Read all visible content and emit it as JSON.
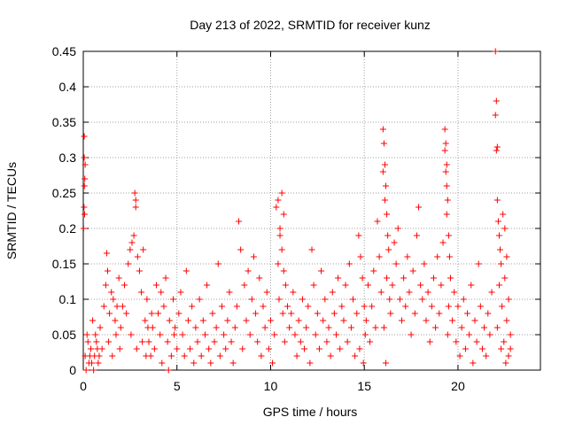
{
  "chart_data": {
    "type": "scatter",
    "title": "Day 213 of 2022, SRMTID for receiver kunz",
    "xlabel": "GPS time / hours",
    "ylabel": "SRMTID / TECUs",
    "xlim": [
      0,
      24.4
    ],
    "ylim": [
      0,
      0.45
    ],
    "x_ticks": [
      0,
      5,
      10,
      15,
      20
    ],
    "x_tick_labels": [
      "0",
      "5",
      "10",
      "15",
      "20"
    ],
    "y_ticks": [
      0,
      0.05,
      0.1,
      0.15,
      0.2,
      0.25,
      0.3,
      0.35,
      0.4,
      0.45
    ],
    "y_tick_labels": [
      "0",
      "0.05",
      "0.1",
      "0.15",
      "0.2",
      "0.25",
      "0.3",
      "0.35",
      "0.4",
      "0.45"
    ],
    "grid": true,
    "marker": "plus",
    "marker_color": "#ff0000",
    "series": [
      {
        "name": "SRMTID",
        "color": "#ff0000",
        "points": [
          [
            0.05,
            0.33
          ],
          [
            0.05,
            0.3
          ],
          [
            0.08,
            0.27
          ],
          [
            0.06,
            0.26
          ],
          [
            0.04,
            0.23
          ],
          [
            0.07,
            0.22
          ],
          [
            0.1,
            0.29
          ],
          [
            0.02,
            0.2
          ],
          [
            0.1,
            0.02
          ],
          [
            0.2,
            0.05
          ],
          [
            0.3,
            0.01
          ],
          [
            0.4,
            0.03
          ],
          [
            0.5,
            0.07
          ],
          [
            0.6,
            0.02
          ],
          [
            0.7,
            0.04
          ],
          [
            0.8,
            0.01
          ],
          [
            0.9,
            0.06
          ],
          [
            1.0,
            0.03
          ],
          [
            0.15,
            0.0
          ],
          [
            0.35,
            0.02
          ],
          [
            0.55,
            0.0
          ],
          [
            0.75,
            0.03
          ],
          [
            0.25,
            0.04
          ],
          [
            0.45,
            0.01
          ],
          [
            0.65,
            0.05
          ],
          [
            0.85,
            0.02
          ],
          [
            1.1,
            0.09
          ],
          [
            1.2,
            0.12
          ],
          [
            1.3,
            0.14
          ],
          [
            1.4,
            0.08
          ],
          [
            1.5,
            0.11
          ],
          [
            1.6,
            0.1
          ],
          [
            1.7,
            0.07
          ],
          [
            1.8,
            0.09
          ],
          [
            1.9,
            0.13
          ],
          [
            2.0,
            0.06
          ],
          [
            1.25,
            0.165
          ],
          [
            1.35,
            0.04
          ],
          [
            1.55,
            0.02
          ],
          [
            1.75,
            0.05
          ],
          [
            1.95,
            0.03
          ],
          [
            2.1,
            0.09
          ],
          [
            2.2,
            0.12
          ],
          [
            2.3,
            0.08
          ],
          [
            2.4,
            0.15
          ],
          [
            2.5,
            0.17
          ],
          [
            2.6,
            0.18
          ],
          [
            2.7,
            0.19
          ],
          [
            2.75,
            0.25
          ],
          [
            2.8,
            0.24
          ],
          [
            2.8,
            0.23
          ],
          [
            2.9,
            0.16
          ],
          [
            3.0,
            0.14
          ],
          [
            3.1,
            0.11
          ],
          [
            3.2,
            0.17
          ],
          [
            3.3,
            0.07
          ],
          [
            3.4,
            0.1
          ],
          [
            2.55,
            0.05
          ],
          [
            2.85,
            0.03
          ],
          [
            3.15,
            0.04
          ],
          [
            3.35,
            0.02
          ],
          [
            3.45,
            0.06
          ],
          [
            3.5,
            0.04
          ],
          [
            3.6,
            0.02
          ],
          [
            3.7,
            0.06
          ],
          [
            3.8,
            0.03
          ],
          [
            3.9,
            0.12
          ],
          [
            4.0,
            0.08
          ],
          [
            4.1,
            0.05
          ],
          [
            4.2,
            0.01
          ],
          [
            4.3,
            0.09
          ],
          [
            4.4,
            0.13
          ],
          [
            4.5,
            0.04
          ],
          [
            4.6,
            0.07
          ],
          [
            4.7,
            0.02
          ],
          [
            4.8,
            0.1
          ],
          [
            4.9,
            0.06
          ],
          [
            5.0,
            0.03
          ],
          [
            3.65,
            0.08
          ],
          [
            4.15,
            0.11
          ],
          [
            4.55,
            0.0
          ],
          [
            4.85,
            0.05
          ],
          [
            5.1,
            0.08
          ],
          [
            5.2,
            0.11
          ],
          [
            5.3,
            0.05
          ],
          [
            5.4,
            0.02
          ],
          [
            5.5,
            0.14
          ],
          [
            5.6,
            0.07
          ],
          [
            5.7,
            0.03
          ],
          [
            5.8,
            0.09
          ],
          [
            5.9,
            0.01
          ],
          [
            6.0,
            0.06
          ],
          [
            6.1,
            0.04
          ],
          [
            6.2,
            0.1
          ],
          [
            6.3,
            0.02
          ],
          [
            6.4,
            0.07
          ],
          [
            6.5,
            0.05
          ],
          [
            6.6,
            0.12
          ],
          [
            6.7,
            0.03
          ],
          [
            6.8,
            0.01
          ],
          [
            6.9,
            0.08
          ],
          [
            7.0,
            0.04
          ],
          [
            7.1,
            0.06
          ],
          [
            7.2,
            0.15
          ],
          [
            7.3,
            0.02
          ],
          [
            7.4,
            0.09
          ],
          [
            7.5,
            0.05
          ],
          [
            7.6,
            0.03
          ],
          [
            7.7,
            0.07
          ],
          [
            7.8,
            0.11
          ],
          [
            7.9,
            0.04
          ],
          [
            8.0,
            0.01
          ],
          [
            8.1,
            0.06
          ],
          [
            8.2,
            0.09
          ],
          [
            8.3,
            0.21
          ],
          [
            8.4,
            0.17
          ],
          [
            8.5,
            0.03
          ],
          [
            8.6,
            0.12
          ],
          [
            8.7,
            0.07
          ],
          [
            8.8,
            0.14
          ],
          [
            8.9,
            0.05
          ],
          [
            9.0,
            0.1
          ],
          [
            9.1,
            0.16
          ],
          [
            9.2,
            0.08
          ],
          [
            9.3,
            0.04
          ],
          [
            9.4,
            0.13
          ],
          [
            9.5,
            0.02
          ],
          [
            9.6,
            0.09
          ],
          [
            9.7,
            0.06
          ],
          [
            9.8,
            0.11
          ],
          [
            9.9,
            0.03
          ],
          [
            10.0,
            0.07
          ],
          [
            10.1,
            0.01
          ],
          [
            10.2,
            0.05
          ],
          [
            10.3,
            0.23
          ],
          [
            10.4,
            0.24
          ],
          [
            10.5,
            0.2
          ],
          [
            10.6,
            0.25
          ],
          [
            10.7,
            0.22
          ],
          [
            10.5,
            0.19
          ],
          [
            10.6,
            0.17
          ],
          [
            10.4,
            0.15
          ],
          [
            10.7,
            0.14
          ],
          [
            10.8,
            0.12
          ],
          [
            10.9,
            0.09
          ],
          [
            11.0,
            0.06
          ],
          [
            10.45,
            0.1
          ],
          [
            10.65,
            0.08
          ],
          [
            10.75,
            0.04
          ],
          [
            11.1,
            0.08
          ],
          [
            11.2,
            0.11
          ],
          [
            11.3,
            0.05
          ],
          [
            11.4,
            0.02
          ],
          [
            11.5,
            0.07
          ],
          [
            11.6,
            0.04
          ],
          [
            11.7,
            0.1
          ],
          [
            11.8,
            0.03
          ],
          [
            11.9,
            0.06
          ],
          [
            12.0,
            0.09
          ],
          [
            12.1,
            0.01
          ],
          [
            12.2,
            0.17
          ],
          [
            12.3,
            0.12
          ],
          [
            12.4,
            0.05
          ],
          [
            12.5,
            0.08
          ],
          [
            12.6,
            0.03
          ],
          [
            12.7,
            0.14
          ],
          [
            12.8,
            0.07
          ],
          [
            12.9,
            0.1
          ],
          [
            13.0,
            0.04
          ],
          [
            13.1,
            0.06
          ],
          [
            13.2,
            0.02
          ],
          [
            13.3,
            0.11
          ],
          [
            13.4,
            0.08
          ],
          [
            13.5,
            0.05
          ],
          [
            13.6,
            0.13
          ],
          [
            13.7,
            0.03
          ],
          [
            13.8,
            0.09
          ],
          [
            13.9,
            0.07
          ],
          [
            14.0,
            0.12
          ],
          [
            14.1,
            0.04
          ],
          [
            14.2,
            0.15
          ],
          [
            14.3,
            0.06
          ],
          [
            14.4,
            0.1
          ],
          [
            14.5,
            0.02
          ],
          [
            14.6,
            0.08
          ],
          [
            14.7,
            0.19
          ],
          [
            14.8,
            0.16
          ],
          [
            14.9,
            0.13
          ],
          [
            15.0,
            0.09
          ],
          [
            14.75,
            0.03
          ],
          [
            14.95,
            0.01
          ],
          [
            15.05,
            0.05
          ],
          [
            15.1,
            0.07
          ],
          [
            15.2,
            0.12
          ],
          [
            15.3,
            0.04
          ],
          [
            15.4,
            0.09
          ],
          [
            15.5,
            0.14
          ],
          [
            15.6,
            0.06
          ],
          [
            15.7,
            0.21
          ],
          [
            15.8,
            0.16
          ],
          [
            15.9,
            0.11
          ],
          [
            16.0,
            0.34
          ],
          [
            16.05,
            0.32
          ],
          [
            16.1,
            0.29
          ],
          [
            16.0,
            0.28
          ],
          [
            16.15,
            0.26
          ],
          [
            16.1,
            0.24
          ],
          [
            16.2,
            0.22
          ],
          [
            16.25,
            0.19
          ],
          [
            16.3,
            0.17
          ],
          [
            16.2,
            0.13
          ],
          [
            16.35,
            0.1
          ],
          [
            16.05,
            0.06
          ],
          [
            16.15,
            0.01
          ],
          [
            16.4,
            0.08
          ],
          [
            16.5,
            0.12
          ],
          [
            16.6,
            0.18
          ],
          [
            16.7,
            0.15
          ],
          [
            16.8,
            0.2
          ],
          [
            16.9,
            0.1
          ],
          [
            17.0,
            0.07
          ],
          [
            17.1,
            0.13
          ],
          [
            17.2,
            0.09
          ],
          [
            17.3,
            0.16
          ],
          [
            17.4,
            0.11
          ],
          [
            17.5,
            0.05
          ],
          [
            17.6,
            0.14
          ],
          [
            17.7,
            0.08
          ],
          [
            17.8,
            0.19
          ],
          [
            17.9,
            0.23
          ],
          [
            18.0,
            0.12
          ],
          [
            18.1,
            0.1
          ],
          [
            18.2,
            0.15
          ],
          [
            18.3,
            0.07
          ],
          [
            18.4,
            0.11
          ],
          [
            18.5,
            0.04
          ],
          [
            18.6,
            0.09
          ],
          [
            18.7,
            0.13
          ],
          [
            18.8,
            0.06
          ],
          [
            18.9,
            0.16
          ],
          [
            19.0,
            0.08
          ],
          [
            19.1,
            0.12
          ],
          [
            19.2,
            0.18
          ],
          [
            19.3,
            0.34
          ],
          [
            19.35,
            0.32
          ],
          [
            19.3,
            0.31
          ],
          [
            19.4,
            0.29
          ],
          [
            19.35,
            0.28
          ],
          [
            19.4,
            0.26
          ],
          [
            19.45,
            0.24
          ],
          [
            19.4,
            0.22
          ],
          [
            19.5,
            0.19
          ],
          [
            19.55,
            0.16
          ],
          [
            19.6,
            0.13
          ],
          [
            19.5,
            0.09
          ],
          [
            19.45,
            0.05
          ],
          [
            19.7,
            0.07
          ],
          [
            19.8,
            0.11
          ],
          [
            19.9,
            0.04
          ],
          [
            20.0,
            0.09
          ],
          [
            20.1,
            0.02
          ],
          [
            20.2,
            0.06
          ],
          [
            20.3,
            0.1
          ],
          [
            20.4,
            0.03
          ],
          [
            20.5,
            0.08
          ],
          [
            20.6,
            0.05
          ],
          [
            20.7,
            0.12
          ],
          [
            20.8,
            0.01
          ],
          [
            20.9,
            0.07
          ],
          [
            21.0,
            0.04
          ],
          [
            21.1,
            0.15
          ],
          [
            21.2,
            0.09
          ],
          [
            21.3,
            0.03
          ],
          [
            21.4,
            0.06
          ],
          [
            21.5,
            0.02
          ],
          [
            21.6,
            0.08
          ],
          [
            21.7,
            0.05
          ],
          [
            21.8,
            0.11
          ],
          [
            22.0,
            0.45
          ],
          [
            22.05,
            0.38
          ],
          [
            22.0,
            0.36
          ],
          [
            22.1,
            0.315
          ],
          [
            22.05,
            0.31
          ],
          [
            22.1,
            0.24
          ],
          [
            22.15,
            0.21
          ],
          [
            22.2,
            0.19
          ],
          [
            22.25,
            0.17
          ],
          [
            22.3,
            0.15
          ],
          [
            22.2,
            0.12
          ],
          [
            22.35,
            0.09
          ],
          [
            22.1,
            0.06
          ],
          [
            22.3,
            0.03
          ],
          [
            22.4,
            0.22
          ],
          [
            22.5,
            0.2
          ],
          [
            22.6,
            0.16
          ],
          [
            22.5,
            0.13
          ],
          [
            22.7,
            0.1
          ],
          [
            22.6,
            0.07
          ],
          [
            22.8,
            0.05
          ],
          [
            22.7,
            0.02
          ],
          [
            22.8,
            0.03
          ],
          [
            22.45,
            0.04
          ],
          [
            22.55,
            0.01
          ]
        ]
      }
    ]
  }
}
